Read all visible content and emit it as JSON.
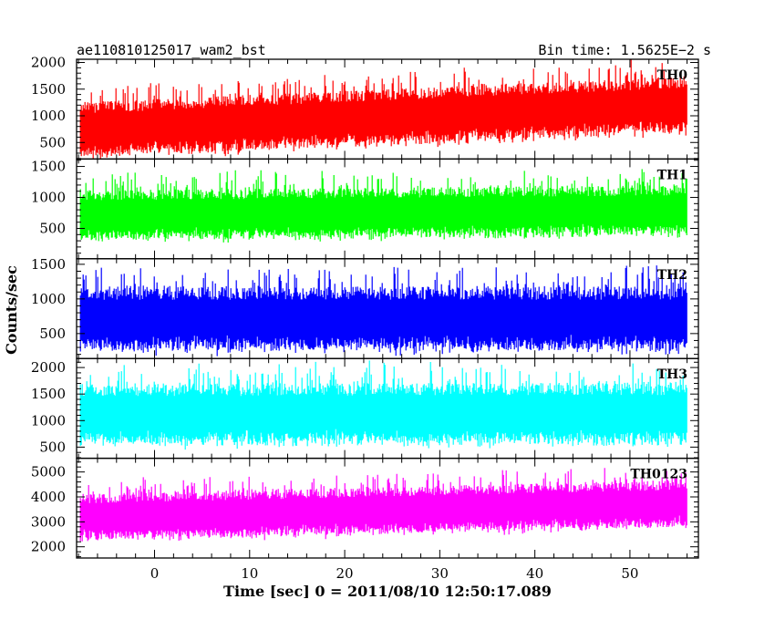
{
  "header": {
    "left_title": "ae110810125017_wam2_bst",
    "right_title": "Bin time: 1.5625E−2 s"
  },
  "chart_data": {
    "type": "line",
    "xlabel": "Time [sec] 0 = 2011/08/10 12:50:17.089",
    "ylabel": "Counts/sec",
    "xlim": [
      -8.2,
      57.2
    ],
    "x_start": -7.8,
    "x_end": 56.0,
    "x_ticks": [
      0,
      10,
      20,
      30,
      40,
      50
    ],
    "bin_time": 0.015625,
    "grid": false,
    "panels": [
      {
        "name": "TH0",
        "color": "#ff0000",
        "ylim": [
          190,
          2060
        ],
        "y_ticks": [
          500,
          1000,
          1500,
          2000
        ],
        "trend_start": 720,
        "trend_end": 1200,
        "spread": 360
      },
      {
        "name": "TH1",
        "color": "#00ff00",
        "ylim": [
          10,
          1620
        ],
        "y_ticks": [
          500,
          1000,
          1500
        ],
        "trend_start": 700,
        "trend_end": 780,
        "spread": 280
      },
      {
        "name": "TH2",
        "color": "#0000ff",
        "ylim": [
          140,
          1580
        ],
        "y_ticks": [
          500,
          1000,
          1500
        ],
        "trend_start": 700,
        "trend_end": 700,
        "spread": 320
      },
      {
        "name": "TH3",
        "color": "#00ffff",
        "ylim": [
          290,
          2170
        ],
        "y_ticks": [
          500,
          1000,
          1500,
          2000
        ],
        "trend_start": 1100,
        "trend_end": 1120,
        "spread": 400
      },
      {
        "name": "TH0123",
        "color": "#ff00ff",
        "ylim": [
          1550,
          5550
        ],
        "y_ticks": [
          2000,
          3000,
          4000,
          5000
        ],
        "trend_start": 3150,
        "trend_end": 3700,
        "spread": 650
      }
    ]
  }
}
